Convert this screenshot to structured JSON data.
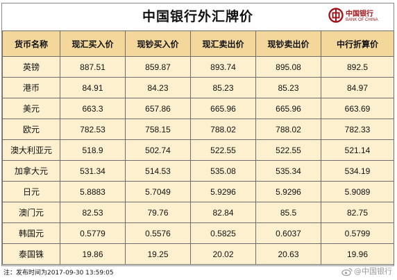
{
  "title": "中国银行外汇牌价",
  "logo": {
    "name_cn": "中国银行",
    "name_en": "BANK OF CHINA",
    "icon": "bank-of-china-logo-icon",
    "color": "#a0161b"
  },
  "table": {
    "headers": [
      "货币名称",
      "现汇买入价",
      "现钞买入价",
      "现汇卖出价",
      "现钞卖出价",
      "中行折算价"
    ],
    "rows": [
      [
        "英镑",
        "887.51",
        "859.87",
        "893.74",
        "895.08",
        "892.5"
      ],
      [
        "港币",
        "84.91",
        "84.23",
        "85.23",
        "85.23",
        "84.97"
      ],
      [
        "美元",
        "663.3",
        "657.86",
        "665.96",
        "665.96",
        "663.69"
      ],
      [
        "欧元",
        "782.53",
        "758.15",
        "788.02",
        "788.02",
        "782.33"
      ],
      [
        "澳大利亚元",
        "518.9",
        "502.74",
        "522.55",
        "522.55",
        "521.14"
      ],
      [
        "加拿大元",
        "531.34",
        "514.53",
        "535.08",
        "535.34",
        "534.19"
      ],
      [
        "日元",
        "5.8883",
        "5.7049",
        "5.9296",
        "5.9296",
        "5.9089"
      ],
      [
        "澳门元",
        "82.53",
        "79.76",
        "82.84",
        "85.5",
        "82.75"
      ],
      [
        "韩国元",
        "0.5779",
        "0.5576",
        "0.5825",
        "0.6037",
        "0.5799"
      ],
      [
        "泰国铢",
        "19.86",
        "19.25",
        "20.02",
        "20.63",
        "19.96"
      ]
    ]
  },
  "footer": {
    "note": "注：发布时间为2017-09-30 13:59:05",
    "watermark": "@中国银行",
    "watermark_icon": "weibo-icon"
  },
  "colors": {
    "header_bg": "#f3d79b",
    "cell_bg": "#fdf0cf",
    "border": "#6e6e6e"
  }
}
